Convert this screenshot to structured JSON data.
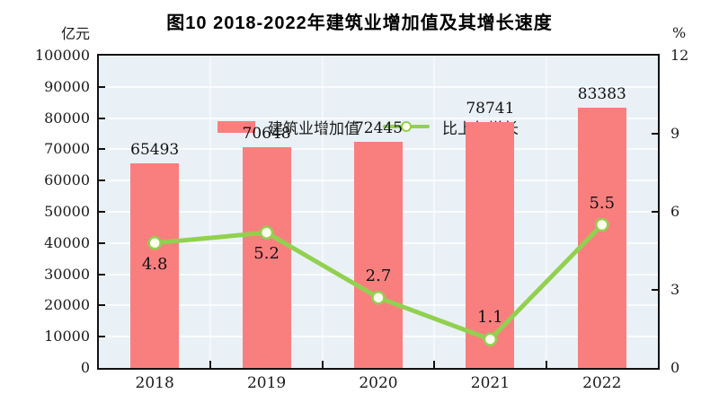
{
  "title": "图10  2018-2022年建筑业增加值及其增长速度",
  "chart_data": {
    "type": "combo-bar-line",
    "categories": [
      "2018",
      "2019",
      "2020",
      "2021",
      "2022"
    ],
    "series": [
      {
        "name": "建筑业增加值",
        "type": "bar",
        "axis": "left",
        "values": [
          65493,
          70648,
          72445,
          78741,
          83383
        ],
        "color": "#f97f7f"
      },
      {
        "name": "比上年增长",
        "type": "line",
        "axis": "right",
        "values": [
          4.8,
          5.2,
          2.7,
          1.1,
          5.5
        ],
        "color": "#92d050",
        "marker_fill": "#fffdee",
        "label_side": [
          "below",
          "below",
          "above",
          "above",
          "above"
        ]
      }
    ],
    "left_axis": {
      "unit": "亿元",
      "min": 0,
      "max": 100000,
      "step": 10000,
      "tick_labels": [
        "0",
        "10000",
        "20000",
        "30000",
        "40000",
        "50000",
        "60000",
        "70000",
        "80000",
        "90000",
        "100000"
      ]
    },
    "right_axis": {
      "unit": "%",
      "min": 0,
      "max": 12,
      "step": 3,
      "tick_labels": [
        "0",
        "3",
        "6",
        "9",
        "12"
      ]
    },
    "legend": {
      "position": "top-left"
    },
    "grid": true,
    "colors": {
      "plot_bg": "#e9f1f6",
      "grid": "#ffffff",
      "frame": "#111111",
      "text": "#1a1a1a"
    }
  }
}
